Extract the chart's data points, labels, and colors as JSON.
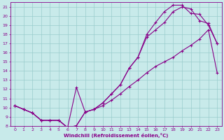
{
  "xlabel": "Windchill (Refroidissement éolien,°C)",
  "bg_color": "#c8eaea",
  "line_color": "#880088",
  "grid_color": "#99cccc",
  "xlim": [
    -0.5,
    23.5
  ],
  "ylim": [
    8,
    21.5
  ],
  "xticks": [
    0,
    1,
    2,
    3,
    4,
    5,
    6,
    7,
    8,
    9,
    10,
    11,
    12,
    13,
    14,
    15,
    16,
    17,
    18,
    19,
    20,
    21,
    22,
    23
  ],
  "yticks": [
    8,
    9,
    10,
    11,
    12,
    13,
    14,
    15,
    16,
    17,
    18,
    19,
    20,
    21
  ],
  "curve1_x": [
    0,
    1,
    2,
    3,
    4,
    5,
    6,
    7,
    8,
    9,
    10,
    11,
    12,
    13,
    14,
    15,
    16,
    17,
    18,
    19,
    20,
    21,
    22,
    23
  ],
  "curve1_y": [
    10.2,
    9.8,
    9.4,
    8.6,
    8.6,
    8.6,
    7.8,
    8.0,
    9.5,
    9.8,
    10.2,
    10.8,
    11.5,
    12.3,
    13.0,
    13.8,
    14.5,
    15.0,
    15.5,
    16.2,
    16.8,
    17.5,
    18.5,
    13.8
  ],
  "curve2_x": [
    0,
    1,
    2,
    3,
    4,
    5,
    6,
    7,
    8,
    9,
    10,
    11,
    12,
    13,
    14,
    15,
    16,
    17,
    18,
    19,
    20,
    21,
    22,
    23
  ],
  "curve2_y": [
    10.2,
    9.8,
    9.4,
    8.6,
    8.6,
    8.6,
    7.8,
    12.2,
    9.5,
    9.8,
    10.5,
    11.5,
    12.5,
    14.3,
    15.5,
    17.7,
    18.5,
    19.3,
    20.5,
    21.0,
    20.8,
    19.5,
    19.2,
    17.0
  ],
  "curve3_x": [
    0,
    1,
    2,
    3,
    4,
    5,
    6,
    7,
    8,
    9,
    10,
    11,
    12,
    13,
    14,
    15,
    16,
    17,
    18,
    19,
    20,
    21,
    22,
    23
  ],
  "curve3_y": [
    10.2,
    9.8,
    9.4,
    8.6,
    8.6,
    8.6,
    7.8,
    8.0,
    9.5,
    9.8,
    10.5,
    11.5,
    12.5,
    14.3,
    15.5,
    18.0,
    19.3,
    20.5,
    21.2,
    21.2,
    20.3,
    20.2,
    19.0,
    17.0
  ]
}
